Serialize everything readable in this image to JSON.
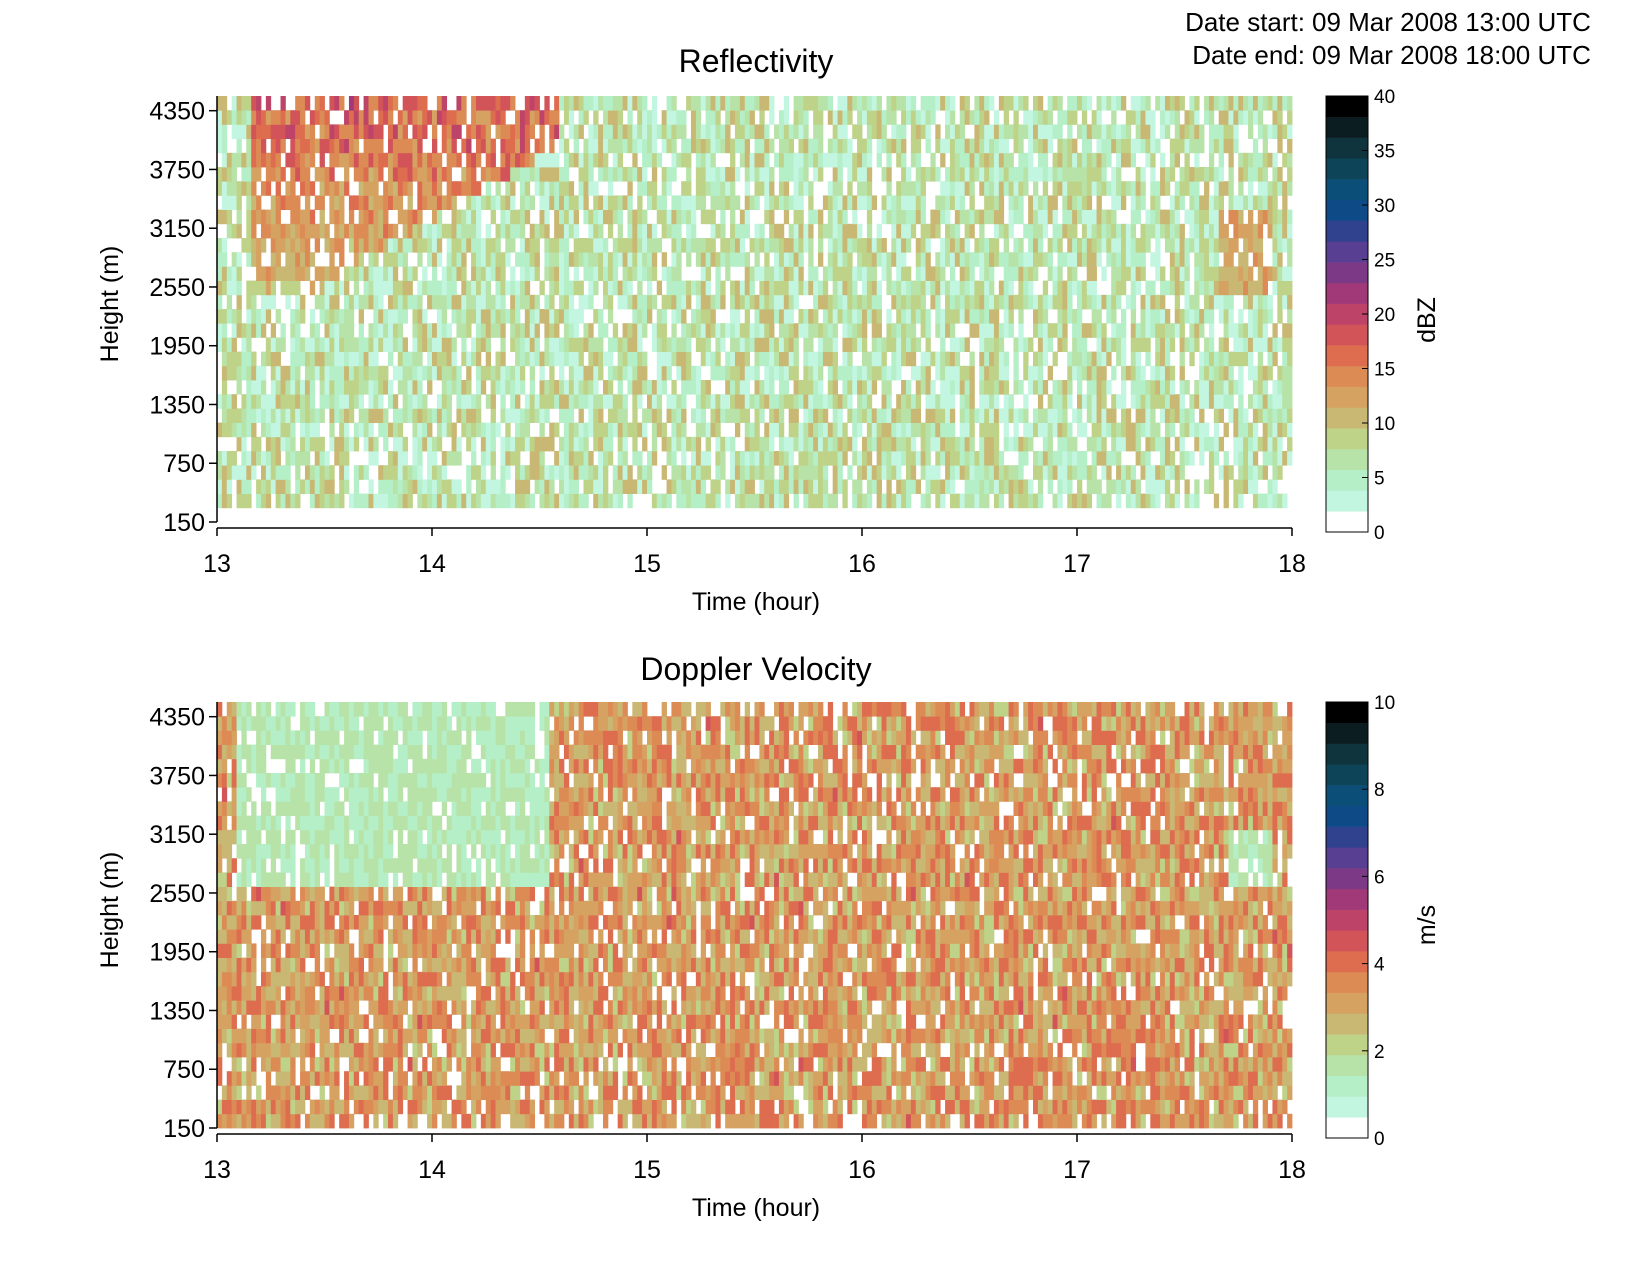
{
  "header": {
    "date_start_label": "Date start:",
    "date_start_value": "09 Mar 2008 13:00 UTC",
    "date_end_label": "Date end:",
    "date_end_value": "09 Mar 2008 18:00 UTC"
  },
  "colormap": [
    "#ffffff",
    "#c2f6e0",
    "#b4efc8",
    "#b8e3a8",
    "#bed288",
    "#c9b774",
    "#d6a262",
    "#dd8b55",
    "#dd6d4e",
    "#d25458",
    "#bd4468",
    "#a13878",
    "#7c3a86",
    "#583f92",
    "#30418e",
    "#0e4a86",
    "#0b4e77",
    "#0e4457",
    "#0f343e",
    "#0c1d21",
    "#000000"
  ],
  "chart_data": [
    {
      "type": "heatmap",
      "title": "Reflectivity",
      "xlabel": "Time (hour)",
      "ylabel": "Height (m)",
      "xlim": [
        13,
        18
      ],
      "ylim": [
        150,
        4500
      ],
      "xticks": [
        13,
        14,
        15,
        16,
        17,
        18
      ],
      "yticks": [
        150,
        750,
        1350,
        1950,
        2550,
        3150,
        3750,
        4350
      ],
      "colorbar": {
        "unit": "dBZ",
        "range": [
          0,
          40
        ],
        "ticks": [
          0,
          5,
          10,
          15,
          20,
          25,
          30,
          35,
          40
        ]
      },
      "background_range": [
        2,
        11
      ],
      "features": [
        {
          "description": "sloping echo",
          "time_start": 13.15,
          "time_end": 14.6,
          "height_top": 4500,
          "height_bottom": 2450,
          "value": 15
        },
        {
          "description": "echo",
          "time_start": 17.65,
          "time_end": 17.9,
          "height_top": 3300,
          "height_bottom": 2450,
          "value": 12
        }
      ]
    },
    {
      "type": "heatmap",
      "title": "Doppler Velocity",
      "xlabel": "Time (hour)",
      "ylabel": "Height (m)",
      "xlim": [
        13,
        18
      ],
      "ylim": [
        150,
        4500
      ],
      "xticks": [
        13,
        14,
        15,
        16,
        17,
        18
      ],
      "yticks": [
        150,
        750,
        1350,
        1950,
        2550,
        3150,
        3750,
        4350
      ],
      "colorbar": {
        "unit": "m/s",
        "range": [
          0,
          10
        ],
        "ticks": [
          0,
          2,
          4,
          6,
          8,
          10
        ]
      },
      "background_range": [
        2.2,
        4.3
      ],
      "features": [
        {
          "description": "low-velocity region",
          "time_start": 13.1,
          "time_end": 14.55,
          "height_top": 4500,
          "height_bottom": 2550,
          "value": 1.5
        },
        {
          "description": "low-velocity region",
          "time_start": 17.7,
          "time_end": 17.9,
          "height_top": 3200,
          "height_bottom": 2600,
          "value": 1.5
        }
      ]
    }
  ]
}
